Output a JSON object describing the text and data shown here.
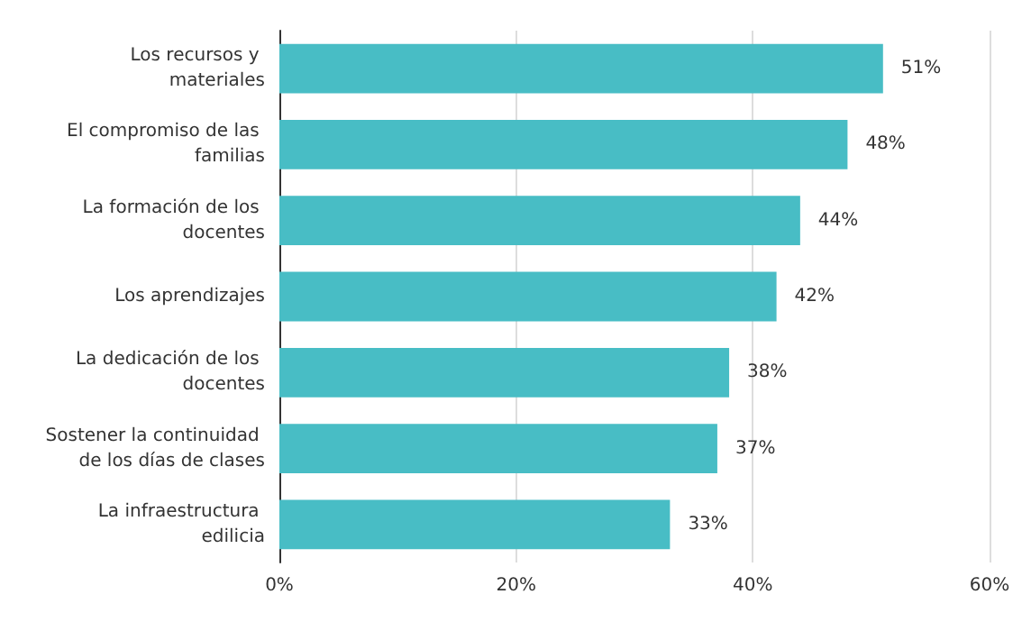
{
  "chart_data": {
    "type": "bar",
    "orientation": "horizontal",
    "categories": [
      "Los recursos y materiales",
      "El compromiso de las familias",
      "La formación de los docentes",
      "Los aprendizajes",
      "La dedicación de los docentes",
      "Sostener la continuidad de los días de clases",
      "La infraestructura edilicia"
    ],
    "values": [
      51,
      48,
      44,
      42,
      38,
      37,
      33
    ],
    "value_labels": [
      "51%",
      "48%",
      "44%",
      "42%",
      "38%",
      "37%",
      "33%"
    ],
    "color": "#48bdc5",
    "xlim": [
      0,
      60
    ],
    "xticks": [
      {
        "value": 0,
        "label": "0%"
      },
      {
        "value": 20,
        "label": "20%"
      },
      {
        "value": 40,
        "label": "40%"
      },
      {
        "value": 60,
        "label": "60%"
      }
    ],
    "grid": "x"
  }
}
